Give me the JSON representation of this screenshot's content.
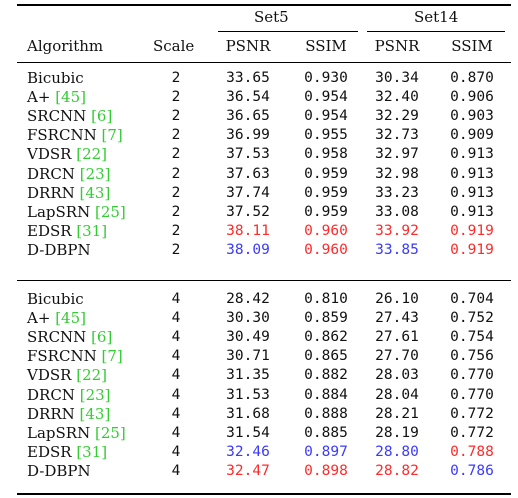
{
  "header": {
    "set5": "Set5",
    "set14": "Set14",
    "algorithm": "Algorithm",
    "scale": "Scale",
    "psnr1": "PSNR",
    "ssim1": "SSIM",
    "psnr2": "PSNR",
    "ssim2": "SSIM"
  },
  "colors": {
    "red": "#ff2a2a",
    "blue": "#3a3aff",
    "citation": "#33cc33"
  },
  "groups": [
    {
      "rows": [
        {
          "name": "Bicubic",
          "cite": "",
          "scale": "2",
          "v": [
            "33.65",
            "0.930",
            "30.34",
            "0.870"
          ],
          "c": [
            "",
            "",
            "",
            ""
          ]
        },
        {
          "name": "A+",
          "cite": "[45]",
          "scale": "2",
          "v": [
            "36.54",
            "0.954",
            "32.40",
            "0.906"
          ],
          "c": [
            "",
            "",
            "",
            ""
          ]
        },
        {
          "name": "SRCNN",
          "cite": "[6]",
          "scale": "2",
          "v": [
            "36.65",
            "0.954",
            "32.29",
            "0.903"
          ],
          "c": [
            "",
            "",
            "",
            ""
          ]
        },
        {
          "name": "FSRCNN",
          "cite": "[7]",
          "scale": "2",
          "v": [
            "36.99",
            "0.955",
            "32.73",
            "0.909"
          ],
          "c": [
            "",
            "",
            "",
            ""
          ]
        },
        {
          "name": "VDSR",
          "cite": "[22]",
          "scale": "2",
          "v": [
            "37.53",
            "0.958",
            "32.97",
            "0.913"
          ],
          "c": [
            "",
            "",
            "",
            ""
          ]
        },
        {
          "name": "DRCN",
          "cite": "[23]",
          "scale": "2",
          "v": [
            "37.63",
            "0.959",
            "32.98",
            "0.913"
          ],
          "c": [
            "",
            "",
            "",
            ""
          ]
        },
        {
          "name": "DRRN",
          "cite": "[43]",
          "scale": "2",
          "v": [
            "37.74",
            "0.959",
            "33.23",
            "0.913"
          ],
          "c": [
            "",
            "",
            "",
            ""
          ]
        },
        {
          "name": "LapSRN",
          "cite": "[25]",
          "scale": "2",
          "v": [
            "37.52",
            "0.959",
            "33.08",
            "0.913"
          ],
          "c": [
            "",
            "",
            "",
            ""
          ]
        },
        {
          "name": "EDSR",
          "cite": "[31]",
          "scale": "2",
          "v": [
            "38.11",
            "0.960",
            "33.92",
            "0.919"
          ],
          "c": [
            "red",
            "red",
            "red",
            "red"
          ]
        },
        {
          "name": "D-DBPN",
          "cite": "",
          "scale": "2",
          "v": [
            "38.09",
            "0.960",
            "33.85",
            "0.919"
          ],
          "c": [
            "blue",
            "red",
            "blue",
            "red"
          ]
        }
      ]
    },
    {
      "rows": [
        {
          "name": "Bicubic",
          "cite": "",
          "scale": "4",
          "v": [
            "28.42",
            "0.810",
            "26.10",
            "0.704"
          ],
          "c": [
            "",
            "",
            "",
            ""
          ]
        },
        {
          "name": "A+",
          "cite": "[45]",
          "scale": "4",
          "v": [
            "30.30",
            "0.859",
            "27.43",
            "0.752"
          ],
          "c": [
            "",
            "",
            "",
            ""
          ]
        },
        {
          "name": "SRCNN",
          "cite": "[6]",
          "scale": "4",
          "v": [
            "30.49",
            "0.862",
            "27.61",
            "0.754"
          ],
          "c": [
            "",
            "",
            "",
            ""
          ]
        },
        {
          "name": "FSRCNN",
          "cite": "[7]",
          "scale": "4",
          "v": [
            "30.71",
            "0.865",
            "27.70",
            "0.756"
          ],
          "c": [
            "",
            "",
            "",
            ""
          ]
        },
        {
          "name": "VDSR",
          "cite": "[22]",
          "scale": "4",
          "v": [
            "31.35",
            "0.882",
            "28.03",
            "0.770"
          ],
          "c": [
            "",
            "",
            "",
            ""
          ]
        },
        {
          "name": "DRCN",
          "cite": "[23]",
          "scale": "4",
          "v": [
            "31.53",
            "0.884",
            "28.04",
            "0.770"
          ],
          "c": [
            "",
            "",
            "",
            ""
          ]
        },
        {
          "name": "DRRN",
          "cite": "[43]",
          "scale": "4",
          "v": [
            "31.68",
            "0.888",
            "28.21",
            "0.772"
          ],
          "c": [
            "",
            "",
            "",
            ""
          ]
        },
        {
          "name": "LapSRN",
          "cite": "[25]",
          "scale": "4",
          "v": [
            "31.54",
            "0.885",
            "28.19",
            "0.772"
          ],
          "c": [
            "",
            "",
            "",
            ""
          ]
        },
        {
          "name": "EDSR",
          "cite": "[31]",
          "scale": "4",
          "v": [
            "32.46",
            "0.897",
            "28.80",
            "0.788"
          ],
          "c": [
            "blue",
            "blue",
            "blue",
            "red"
          ]
        },
        {
          "name": "D-DBPN",
          "cite": "",
          "scale": "4",
          "v": [
            "32.47",
            "0.898",
            "28.82",
            "0.786"
          ],
          "c": [
            "red",
            "red",
            "red",
            "blue"
          ]
        }
      ]
    }
  ]
}
